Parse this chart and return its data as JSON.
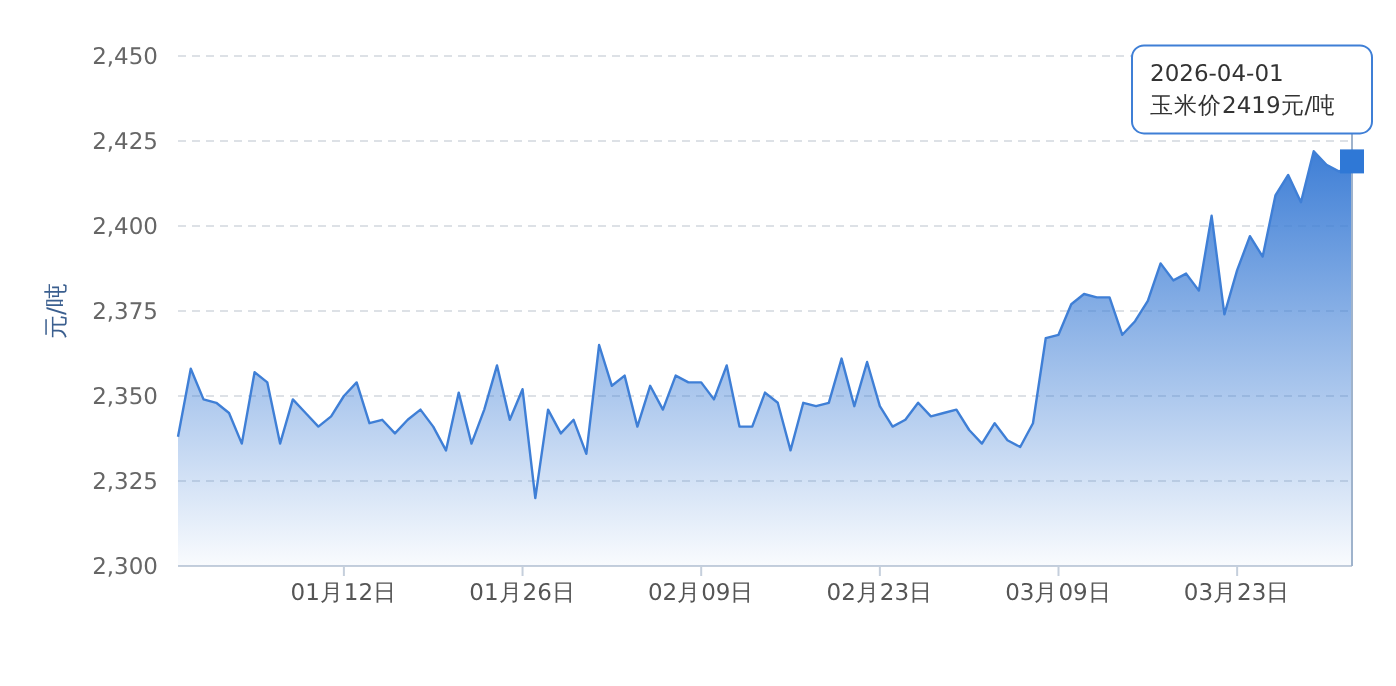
{
  "chart_data": {
    "type": "area",
    "ylabel": "元/吨",
    "x": [
      "2025-12-30",
      "2025-12-31",
      "2026-01-01",
      "2026-01-02",
      "2026-01-03",
      "2026-01-04",
      "2026-01-05",
      "2026-01-06",
      "2026-01-07",
      "2026-01-08",
      "2026-01-09",
      "2026-01-10",
      "2026-01-11",
      "2026-01-12",
      "2026-01-13",
      "2026-01-14",
      "2026-01-15",
      "2026-01-16",
      "2026-01-17",
      "2026-01-18",
      "2026-01-19",
      "2026-01-20",
      "2026-01-21",
      "2026-01-22",
      "2026-01-23",
      "2026-01-24",
      "2026-01-25",
      "2026-01-26",
      "2026-01-27",
      "2026-01-28",
      "2026-01-29",
      "2026-01-30",
      "2026-01-31",
      "2026-02-01",
      "2026-02-02",
      "2026-02-03",
      "2026-02-04",
      "2026-02-05",
      "2026-02-06",
      "2026-02-07",
      "2026-02-08",
      "2026-02-09",
      "2026-02-10",
      "2026-02-11",
      "2026-02-12",
      "2026-02-13",
      "2026-02-14",
      "2026-02-15",
      "2026-02-16",
      "2026-02-17",
      "2026-02-18",
      "2026-02-19",
      "2026-02-20",
      "2026-02-21",
      "2026-02-22",
      "2026-02-23",
      "2026-02-24",
      "2026-02-25",
      "2026-02-26",
      "2026-02-27",
      "2026-02-28",
      "2026-03-01",
      "2026-03-02",
      "2026-03-03",
      "2026-03-04",
      "2026-03-05",
      "2026-03-06",
      "2026-03-07",
      "2026-03-08",
      "2026-03-09",
      "2026-03-10",
      "2026-03-11",
      "2026-03-12",
      "2026-03-13",
      "2026-03-14",
      "2026-03-15",
      "2026-03-16",
      "2026-03-17",
      "2026-03-18",
      "2026-03-19",
      "2026-03-20",
      "2026-03-21",
      "2026-03-22",
      "2026-03-23",
      "2026-03-24",
      "2026-03-25",
      "2026-03-26",
      "2026-03-27",
      "2026-03-28",
      "2026-03-29",
      "2026-03-30",
      "2026-03-31",
      "2026-04-01"
    ],
    "series": [
      {
        "color": "#3f7fd6",
        "values": [
          2338,
          2358,
          2349,
          2348,
          2345,
          2336,
          2357,
          2354,
          2336,
          2349,
          2345,
          2341,
          2344,
          2350,
          2354,
          2342,
          2343,
          2339,
          2343,
          2346,
          2341,
          2334,
          2351,
          2336,
          2346,
          2359,
          2343,
          2352,
          2320,
          2346,
          2339,
          2343,
          2333,
          2365,
          2353,
          2356,
          2341,
          2353,
          2346,
          2356,
          2354,
          2354,
          2349,
          2359,
          2341,
          2341,
          2351,
          2348,
          2334,
          2348,
          2347,
          2348,
          2361,
          2347,
          2360,
          2347,
          2341,
          2343,
          2348,
          2344,
          2345,
          2346,
          2340,
          2336,
          2342,
          2337,
          2335,
          2342,
          2367,
          2368,
          2377,
          2380,
          2379,
          2379,
          2368,
          2372,
          2378,
          2389,
          2384,
          2386,
          2381,
          2403,
          2374,
          2387,
          2397,
          2391,
          2409,
          2415,
          2407,
          2422,
          2418,
          2416,
          2419
        ]
      }
    ],
    "xlim": [
      "2025-12-30",
      "2026-04-01"
    ],
    "xticks": [
      {
        "value": "2026-01-12",
        "label": "01月12日"
      },
      {
        "value": "2026-01-26",
        "label": "01月26日"
      },
      {
        "value": "2026-02-09",
        "label": "02月09日"
      },
      {
        "value": "2026-02-23",
        "label": "02月23日"
      },
      {
        "value": "2026-03-09",
        "label": "03月09日"
      },
      {
        "value": "2026-03-23",
        "label": "03月23日"
      }
    ],
    "ylim": [
      2300,
      2450
    ],
    "yticks": [
      {
        "value": 2300,
        "label": "2,300"
      },
      {
        "value": 2325,
        "label": "2,325"
      },
      {
        "value": 2350,
        "label": "2,350"
      },
      {
        "value": 2375,
        "label": "2,375"
      },
      {
        "value": 2400,
        "label": "2,400"
      },
      {
        "value": 2425,
        "label": "2,425"
      },
      {
        "value": 2450,
        "label": "2,450"
      }
    ],
    "grid": "y",
    "annotations": [
      {
        "text": "2026-04-01\n玉米价2419元/吨",
        "x": "2026-04-01",
        "y": 2419
      }
    ]
  }
}
